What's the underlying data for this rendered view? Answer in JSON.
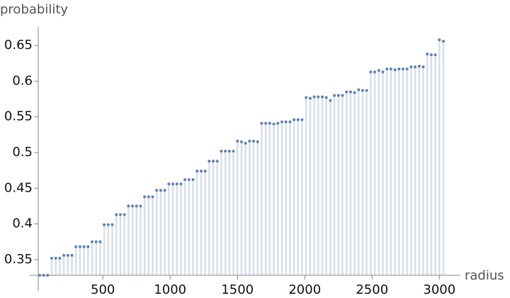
{
  "chart_data": {
    "type": "discrete",
    "x_label": "radius",
    "y_label": "probability",
    "color": "#5e81b5",
    "stem_color": "#d6dfea",
    "x": [
      30,
      60,
      90,
      120,
      150,
      180,
      210,
      240,
      270,
      300,
      330,
      360,
      390,
      420,
      450,
      480,
      510,
      540,
      570,
      600,
      630,
      660,
      690,
      720,
      750,
      780,
      810,
      840,
      870,
      900,
      930,
      960,
      990,
      1020,
      1050,
      1080,
      1110,
      1140,
      1170,
      1200,
      1230,
      1260,
      1290,
      1320,
      1350,
      1380,
      1410,
      1440,
      1470,
      1500,
      1530,
      1560,
      1590,
      1620,
      1650,
      1680,
      1710,
      1740,
      1770,
      1800,
      1830,
      1860,
      1890,
      1920,
      1950,
      1980,
      2010,
      2040,
      2070,
      2100,
      2130,
      2160,
      2190,
      2220,
      2250,
      2280,
      2310,
      2340,
      2370,
      2400,
      2430,
      2460,
      2490,
      2520,
      2550,
      2580,
      2610,
      2640,
      2670,
      2700,
      2730,
      2760,
      2790,
      2820,
      2850,
      2880,
      2910,
      2940,
      2970,
      3000,
      3030
    ],
    "values": [
      0.328,
      0.328,
      0.328,
      0.352,
      0.352,
      0.352,
      0.356,
      0.356,
      0.356,
      0.368,
      0.368,
      0.368,
      0.368,
      0.375,
      0.375,
      0.375,
      0.399,
      0.399,
      0.399,
      0.413,
      0.413,
      0.413,
      0.425,
      0.425,
      0.425,
      0.425,
      0.438,
      0.438,
      0.438,
      0.447,
      0.447,
      0.447,
      0.456,
      0.456,
      0.456,
      0.456,
      0.462,
      0.462,
      0.462,
      0.474,
      0.474,
      0.474,
      0.488,
      0.488,
      0.488,
      0.502,
      0.502,
      0.502,
      0.502,
      0.516,
      0.515,
      0.513,
      0.516,
      0.516,
      0.515,
      0.541,
      0.541,
      0.541,
      0.54,
      0.541,
      0.543,
      0.543,
      0.543,
      0.546,
      0.546,
      0.546,
      0.577,
      0.576,
      0.578,
      0.578,
      0.578,
      0.577,
      0.573,
      0.58,
      0.58,
      0.58,
      0.585,
      0.585,
      0.584,
      0.588,
      0.587,
      0.587,
      0.613,
      0.613,
      0.615,
      0.613,
      0.617,
      0.617,
      0.616,
      0.617,
      0.617,
      0.617,
      0.62,
      0.62,
      0.621,
      0.62,
      0.638,
      0.637,
      0.637,
      0.658,
      0.656
    ],
    "xlim": [
      20,
      3130
    ],
    "ylim": [
      0.328,
      0.67
    ],
    "xticks": [
      500,
      1000,
      1500,
      2000,
      2500,
      3000
    ],
    "yticks": [
      0.35,
      0.4,
      0.45,
      0.5,
      0.55,
      0.6,
      0.65
    ]
  }
}
